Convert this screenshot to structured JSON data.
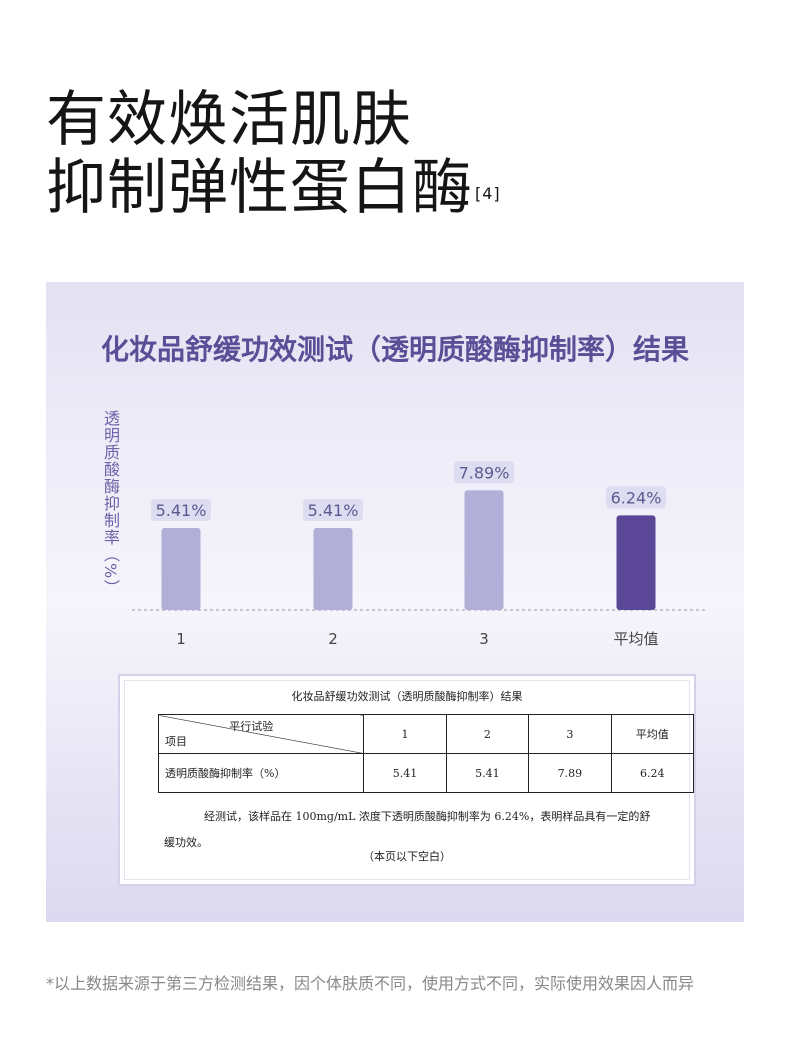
{
  "headline": {
    "line1": "有效焕活肌肤",
    "line2": "抑制弹性蛋白酶",
    "ref": "[4]"
  },
  "chart_data": {
    "type": "bar",
    "title": "化妆品舒缓功效测试（透明质酸酶抑制率）结果",
    "ylabel": "透明质酸酶抑制率（%）",
    "categories": [
      "1",
      "2",
      "3",
      "平均值"
    ],
    "values": [
      5.41,
      5.41,
      7.89,
      6.24
    ],
    "data_labels": [
      "5.41%",
      "5.41%",
      "7.89%",
      "6.24%"
    ],
    "ylim": [
      0,
      12
    ],
    "grid": false,
    "colors": {
      "bar": "#b1aed7",
      "highlight": "#5b4798",
      "label_bg": "#dedcf0",
      "label_text": "#5e5990",
      "tick": "#444444"
    }
  },
  "document": {
    "title": "化妆品舒缓功效测试（透明质酸酶抑制率）结果",
    "header_top": "平行试验",
    "header_bottom": "项目",
    "columns": [
      "1",
      "2",
      "3",
      "平均值"
    ],
    "row_label": "透明质酸酶抑制率（%）",
    "row_values": [
      "5.41",
      "5.41",
      "7.89",
      "6.24"
    ],
    "conclusion": "经测试，该样品在 100mg/mL 浓度下透明质酸酶抑制率为 6.24%，表明样品具有一定的舒缓功效。",
    "blank_note": "（本页以下空白）"
  },
  "footnote": "*以上数据来源于第三方检测结果，因个体肤质不同，使用方式不同，实际使用效果因人而异"
}
